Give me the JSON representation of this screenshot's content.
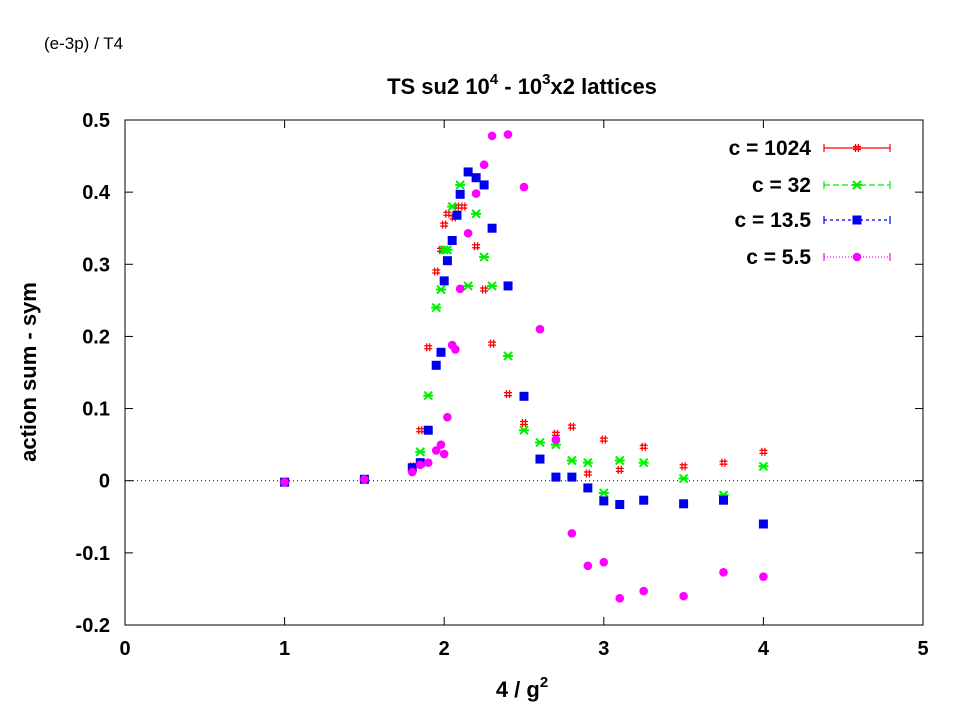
{
  "header": {
    "label": "(e-3p) / T4"
  },
  "chart_data": {
    "type": "scatter",
    "title": {
      "base": "TS su2 10",
      "sup1": "4",
      "mid": " - 10",
      "sup2": "3",
      "tail": "x2 lattices"
    },
    "xlabel": {
      "base": "4 / g",
      "sup": "2"
    },
    "ylabel": "action sum - sym",
    "xlim": [
      0,
      5
    ],
    "ylim": [
      -0.2,
      0.5
    ],
    "xticks": [
      0,
      1,
      2,
      3,
      4,
      5
    ],
    "yticks": [
      -0.2,
      -0.1,
      0,
      0.1,
      0.2,
      0.3,
      0.4,
      0.5
    ],
    "xtick_labels": [
      "0",
      "1",
      "2",
      "3",
      "4",
      "5"
    ],
    "ytick_labels": [
      "-0.2",
      "-0.1",
      "0",
      "0.1",
      "0.2",
      "0.3",
      "0.4",
      "0.5"
    ],
    "zero_line": true,
    "grid": false,
    "legend_position": "top-right",
    "series": [
      {
        "name": "c = 1024",
        "color": "#ff0000",
        "marker": "plus",
        "points": [
          [
            1.0,
            -0.002
          ],
          [
            1.5,
            0.002
          ],
          [
            1.8,
            0.02
          ],
          [
            1.85,
            0.07
          ],
          [
            1.9,
            0.185
          ],
          [
            1.95,
            0.29
          ],
          [
            1.98,
            0.32
          ],
          [
            2.0,
            0.355
          ],
          [
            2.02,
            0.37
          ],
          [
            2.06,
            0.365
          ],
          [
            2.08,
            0.38
          ],
          [
            2.12,
            0.38
          ],
          [
            2.2,
            0.325
          ],
          [
            2.25,
            0.265
          ],
          [
            2.3,
            0.19
          ],
          [
            2.4,
            0.12
          ],
          [
            2.5,
            0.08
          ],
          [
            2.7,
            0.065
          ],
          [
            2.8,
            0.075
          ],
          [
            2.9,
            0.01
          ],
          [
            3.0,
            0.057
          ],
          [
            3.1,
            0.015
          ],
          [
            3.25,
            0.047
          ],
          [
            3.5,
            0.02
          ],
          [
            3.75,
            0.025
          ],
          [
            4.0,
            0.04
          ]
        ]
      },
      {
        "name": "c = 32",
        "color": "#00ee00",
        "marker": "star",
        "points": [
          [
            1.0,
            -0.002
          ],
          [
            1.5,
            0.002
          ],
          [
            1.85,
            0.04
          ],
          [
            1.9,
            0.118
          ],
          [
            1.95,
            0.24
          ],
          [
            1.98,
            0.265
          ],
          [
            2.0,
            0.32
          ],
          [
            2.02,
            0.32
          ],
          [
            2.05,
            0.38
          ],
          [
            2.1,
            0.41
          ],
          [
            2.15,
            0.27
          ],
          [
            2.2,
            0.37
          ],
          [
            2.25,
            0.31
          ],
          [
            2.3,
            0.27
          ],
          [
            2.4,
            0.173
          ],
          [
            2.5,
            0.07
          ],
          [
            2.6,
            0.053
          ],
          [
            2.7,
            0.05
          ],
          [
            2.8,
            0.028
          ],
          [
            2.9,
            0.025
          ],
          [
            3.0,
            -0.017
          ],
          [
            3.1,
            0.028
          ],
          [
            3.25,
            0.025
          ],
          [
            3.5,
            0.003
          ],
          [
            3.75,
            -0.02
          ],
          [
            4.0,
            0.02
          ]
        ]
      },
      {
        "name": "c = 13.5",
        "color": "#0000ee",
        "marker": "square",
        "points": [
          [
            1.0,
            -0.002
          ],
          [
            1.5,
            0.002
          ],
          [
            1.8,
            0.018
          ],
          [
            1.85,
            0.025
          ],
          [
            1.9,
            0.07
          ],
          [
            1.95,
            0.16
          ],
          [
            1.98,
            0.178
          ],
          [
            2.0,
            0.277
          ],
          [
            2.02,
            0.305
          ],
          [
            2.05,
            0.333
          ],
          [
            2.08,
            0.368
          ],
          [
            2.1,
            0.397
          ],
          [
            2.15,
            0.428
          ],
          [
            2.2,
            0.42
          ],
          [
            2.25,
            0.41
          ],
          [
            2.3,
            0.35
          ],
          [
            2.4,
            0.27
          ],
          [
            2.5,
            0.117
          ],
          [
            2.6,
            0.03
          ],
          [
            2.7,
            0.005
          ],
          [
            2.8,
            0.005
          ],
          [
            2.9,
            -0.01
          ],
          [
            3.0,
            -0.028
          ],
          [
            3.1,
            -0.033
          ],
          [
            3.25,
            -0.027
          ],
          [
            3.5,
            -0.032
          ],
          [
            3.75,
            -0.027
          ],
          [
            4.0,
            -0.06
          ]
        ]
      },
      {
        "name": "c = 5.5",
        "color": "#ff00ff",
        "marker": "circle",
        "points": [
          [
            1.0,
            -0.002
          ],
          [
            1.5,
            0.002
          ],
          [
            1.8,
            0.012
          ],
          [
            1.85,
            0.022
          ],
          [
            1.9,
            0.025
          ],
          [
            1.95,
            0.042
          ],
          [
            1.98,
            0.05
          ],
          [
            2.0,
            0.037
          ],
          [
            2.02,
            0.088
          ],
          [
            2.05,
            0.188
          ],
          [
            2.07,
            0.182
          ],
          [
            2.1,
            0.266
          ],
          [
            2.15,
            0.343
          ],
          [
            2.2,
            0.398
          ],
          [
            2.25,
            0.438
          ],
          [
            2.3,
            0.478
          ],
          [
            2.4,
            0.48
          ],
          [
            2.5,
            0.407
          ],
          [
            2.6,
            0.21
          ],
          [
            2.7,
            0.057
          ],
          [
            2.8,
            -0.073
          ],
          [
            2.9,
            -0.118
          ],
          [
            3.0,
            -0.113
          ],
          [
            3.1,
            -0.163
          ],
          [
            3.25,
            -0.153
          ],
          [
            3.5,
            -0.16
          ],
          [
            3.75,
            -0.127
          ],
          [
            4.0,
            -0.133
          ]
        ]
      }
    ]
  }
}
